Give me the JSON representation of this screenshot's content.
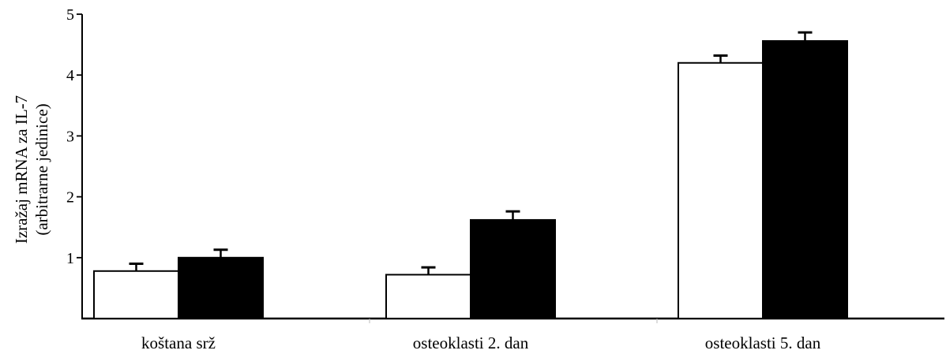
{
  "chart_data": {
    "type": "bar",
    "title": "",
    "xlabel": "",
    "ylabel": "Izražaj mRNA za IL-7",
    "ylabel_line2": "(arbitrarne jedinice)",
    "ylim": [
      0,
      5
    ],
    "yticks": [
      "1",
      "2",
      "3",
      "4",
      "5"
    ],
    "ytick_values": [
      1,
      2,
      3,
      4,
      5
    ],
    "categories": [
      "koštana srž",
      "osteoklasti 2. dan",
      "osteoklasti 5. dan"
    ],
    "series": [
      {
        "fill": "#ffffff",
        "values": [
          0.78,
          0.72,
          4.2
        ],
        "errors": [
          0.12,
          0.12,
          0.12
        ]
      },
      {
        "fill": "#000000",
        "values": [
          1.0,
          1.62,
          4.56
        ],
        "errors": [
          0.13,
          0.14,
          0.14
        ]
      }
    ],
    "grid": false,
    "legend": "none"
  }
}
